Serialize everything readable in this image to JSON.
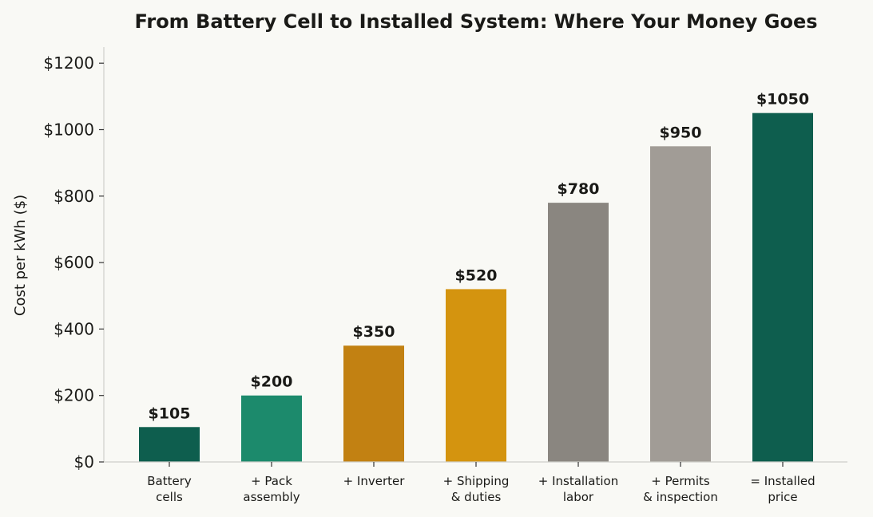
{
  "chart_data": {
    "type": "bar",
    "title": "From Battery Cell to Installed System: Where Your Money Goes",
    "xlabel": "",
    "ylabel": "Cost per kWh ($)",
    "ylim": [
      0,
      1250
    ],
    "yticks": [
      0,
      200,
      400,
      600,
      800,
      1000,
      1200
    ],
    "ytick_labels": [
      "$0",
      "$200",
      "$400",
      "$600",
      "$800",
      "$1000",
      "$1200"
    ],
    "grid": false,
    "categories": [
      [
        "Battery",
        "cells"
      ],
      [
        "+ Pack",
        "assembly"
      ],
      [
        "+ Inverter"
      ],
      [
        "+ Shipping",
        "& duties"
      ],
      [
        "+ Installation",
        "labor"
      ],
      [
        "+ Permits",
        "& inspection"
      ],
      [
        "= Installed",
        "price"
      ]
    ],
    "values": [
      105,
      200,
      350,
      520,
      780,
      950,
      1050
    ],
    "value_labels": [
      "$105",
      "$200",
      "$350",
      "$520",
      "$780",
      "$950",
      "$1050"
    ],
    "colors": [
      "#0e5e4e",
      "#1c8a6c",
      "#c28112",
      "#d4940f",
      "#8a8680",
      "#a19c96",
      "#0e5e4e"
    ]
  }
}
